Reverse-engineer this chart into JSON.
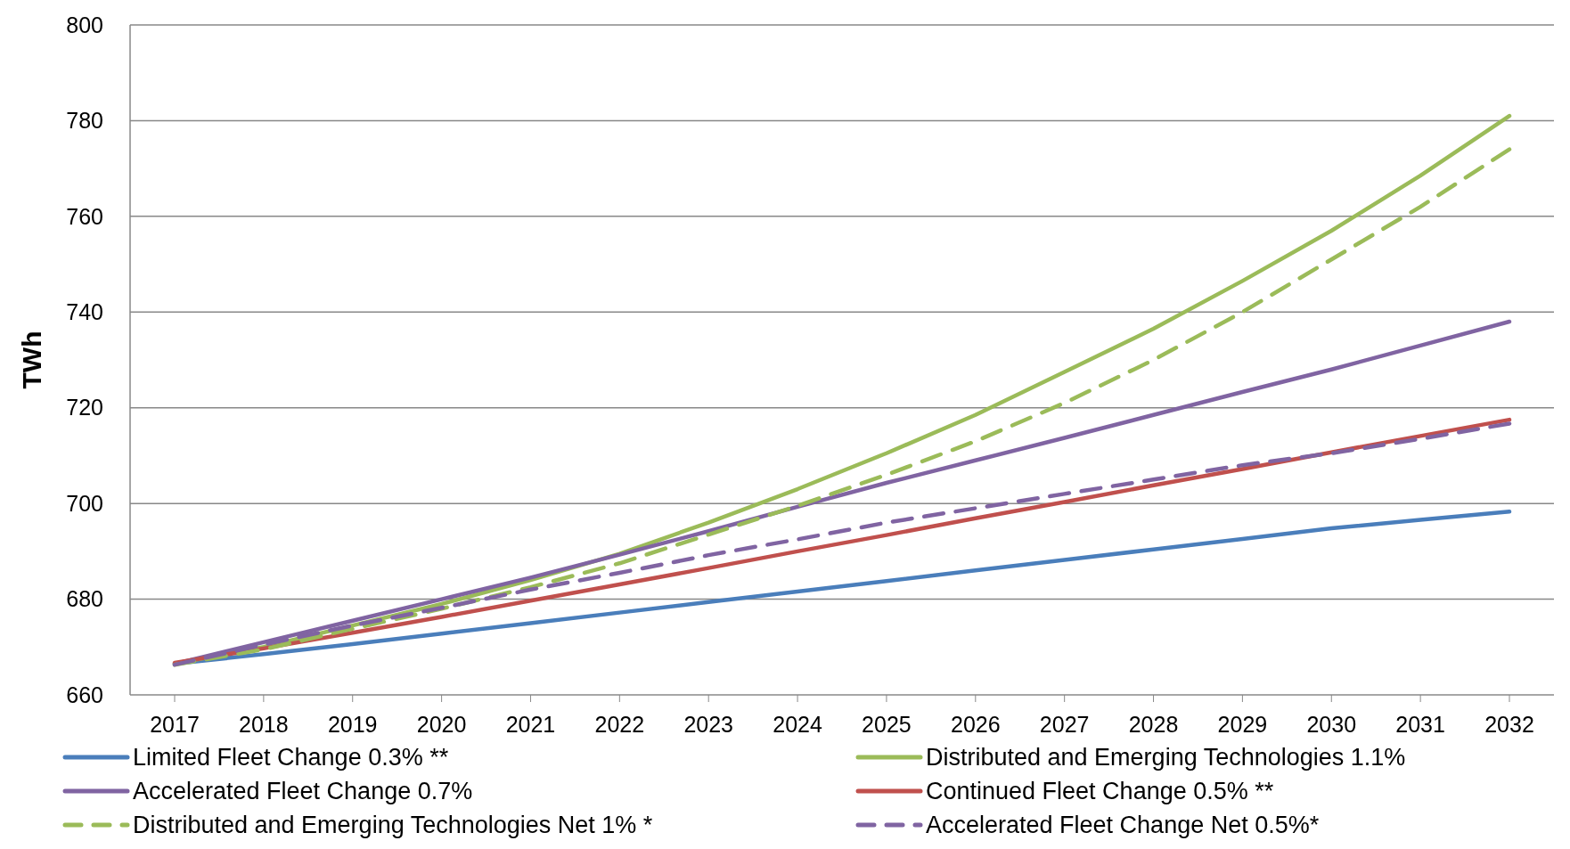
{
  "chart_data": {
    "type": "line",
    "ylabel": "TWh",
    "categories": [
      "2017",
      "2018",
      "2019",
      "2020",
      "2021",
      "2022",
      "2023",
      "2024",
      "2025",
      "2026",
      "2027",
      "2028",
      "2029",
      "2030",
      "2031",
      "2032"
    ],
    "ylim": [
      660,
      800
    ],
    "yticks": [
      660,
      680,
      700,
      720,
      740,
      760,
      780,
      800
    ],
    "grid": "y",
    "legend": "bottom",
    "marker": "none",
    "series": [
      {
        "name": "Limited Fleet Change 0.3% **",
        "color": "#4a7ebb",
        "line_style": "solid",
        "values": [
          666.5,
          668.5,
          670.6,
          672.8,
          675.0,
          677.2,
          679.4,
          681.6,
          683.8,
          686.0,
          688.2,
          690.4,
          692.6,
          694.8,
          696.6,
          698.3
        ]
      },
      {
        "name": "Distributed and Emerging Technologies 1.1%",
        "color": "#9bbb59",
        "line_style": "solid",
        "values": [
          666.5,
          670.0,
          674.5,
          679.0,
          684.0,
          689.5,
          696.0,
          703.0,
          710.5,
          718.5,
          727.5,
          736.5,
          746.5,
          757.0,
          768.5,
          781.0
        ]
      },
      {
        "name": "Accelerated Fleet Change 0.7%",
        "color": "#8064a2",
        "line_style": "solid",
        "values": [
          666.5,
          671.0,
          675.5,
          680.0,
          684.5,
          689.3,
          694.2,
          699.3,
          704.3,
          709.0,
          713.7,
          718.5,
          723.3,
          728.0,
          733.0,
          738.0
        ]
      },
      {
        "name": "Continued Fleet Change 0.5% **",
        "color": "#c0504d",
        "line_style": "solid",
        "values": [
          666.7,
          669.7,
          673.0,
          676.3,
          679.7,
          683.1,
          686.5,
          690.0,
          693.4,
          696.9,
          700.3,
          703.8,
          707.2,
          710.7,
          714.1,
          717.5
        ]
      },
      {
        "name": "Distributed and Emerging Technologies Net 1% *",
        "color": "#9bbb59",
        "line_style": "dashed",
        "values": [
          666.3,
          669.5,
          673.8,
          678.0,
          682.5,
          687.5,
          693.5,
          699.5,
          706.0,
          713.0,
          721.0,
          730.0,
          740.0,
          751.0,
          762.0,
          774.0
        ]
      },
      {
        "name": "Accelerated Fleet Change Net 0.5%*",
        "color": "#8064a2",
        "line_style": "dashed",
        "values": [
          666.3,
          670.5,
          674.5,
          678.2,
          682.0,
          685.5,
          689.2,
          692.5,
          696.0,
          699.0,
          702.0,
          705.0,
          708.0,
          710.5,
          713.5,
          716.7
        ]
      }
    ]
  }
}
